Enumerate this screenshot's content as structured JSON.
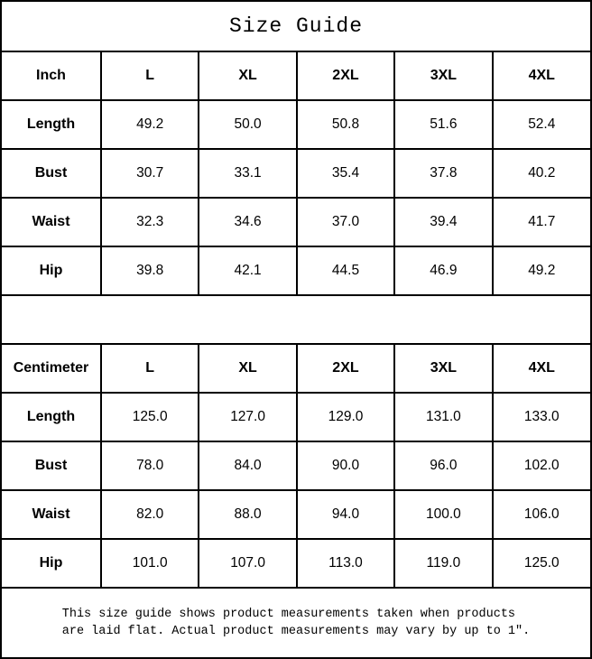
{
  "title": "Size Guide",
  "colors": {
    "border": "#000000",
    "text": "#000000",
    "background": "#ffffff"
  },
  "tables": [
    {
      "unit": "Inch",
      "sizes": [
        "L",
        "XL",
        "2XL",
        "3XL",
        "4XL"
      ],
      "rows": [
        {
          "label": "Length",
          "values": [
            "49.2",
            "50.0",
            "50.8",
            "51.6",
            "52.4"
          ]
        },
        {
          "label": "Bust",
          "values": [
            "30.7",
            "33.1",
            "35.4",
            "37.8",
            "40.2"
          ]
        },
        {
          "label": "Waist",
          "values": [
            "32.3",
            "34.6",
            "37.0",
            "39.4",
            "41.7"
          ]
        },
        {
          "label": "Hip",
          "values": [
            "39.8",
            "42.1",
            "44.5",
            "46.9",
            "49.2"
          ]
        }
      ]
    },
    {
      "unit": "Centimeter",
      "sizes": [
        "L",
        "XL",
        "2XL",
        "3XL",
        "4XL"
      ],
      "rows": [
        {
          "label": "Length",
          "values": [
            "125.0",
            "127.0",
            "129.0",
            "131.0",
            "133.0"
          ]
        },
        {
          "label": "Bust",
          "values": [
            "78.0",
            "84.0",
            "90.0",
            "96.0",
            "102.0"
          ]
        },
        {
          "label": "Waist",
          "values": [
            "82.0",
            "88.0",
            "94.0",
            "100.0",
            "106.0"
          ]
        },
        {
          "label": "Hip",
          "values": [
            "101.0",
            "107.0",
            "113.0",
            "119.0",
            "125.0"
          ]
        }
      ]
    }
  ],
  "footer": {
    "line1": "This size guide shows product measurements taken when products",
    "line2": "are laid flat. Actual product measurements may vary by up to 1″."
  }
}
